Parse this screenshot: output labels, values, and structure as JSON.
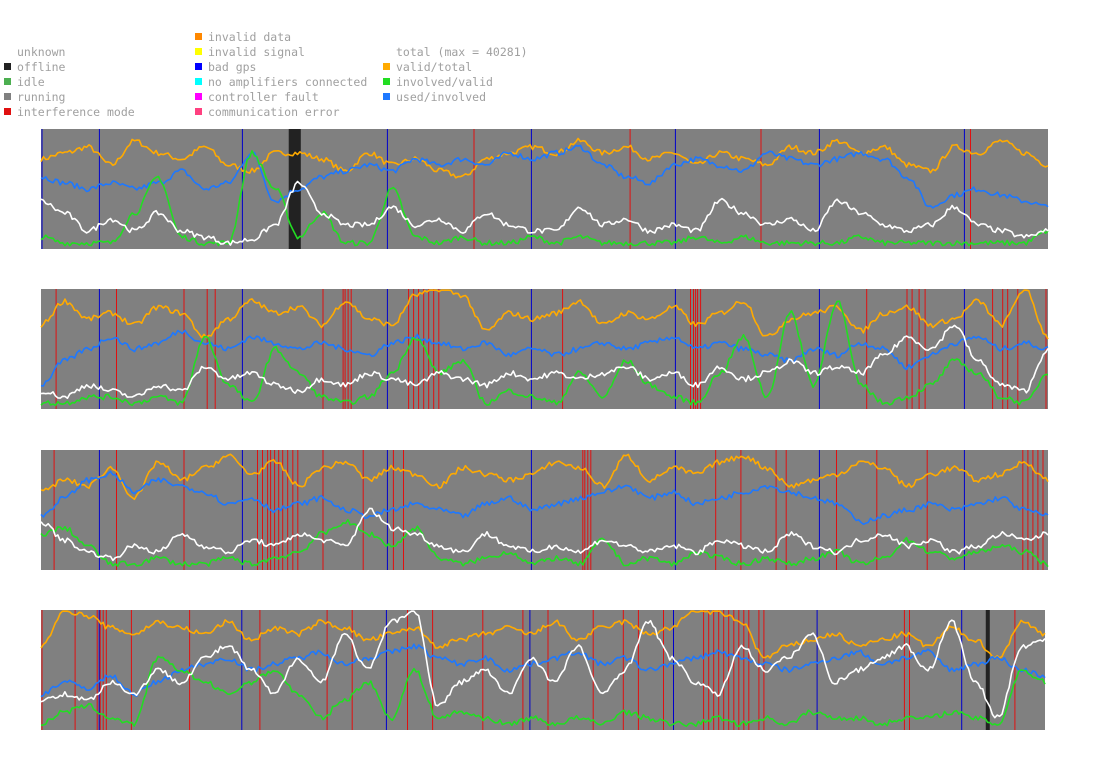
{
  "legend": {
    "status": [
      {
        "label": "unknown",
        "color": ""
      },
      {
        "label": "offline",
        "color": "#222222"
      },
      {
        "label": "idle",
        "color": "#4caf50"
      },
      {
        "label": "running",
        "color": "#808080"
      },
      {
        "label": "interference mode",
        "color": "#e01010"
      }
    ],
    "errors": [
      {
        "label": "invalid data",
        "color": "#ff8800"
      },
      {
        "label": "invalid signal",
        "color": "#ffff00"
      },
      {
        "label": "bad gps",
        "color": "#0000ff"
      },
      {
        "label": "no amplifiers connected",
        "color": "#00ffff"
      },
      {
        "label": "controller fault",
        "color": "#ff00ff"
      },
      {
        "label": "communication error",
        "color": "#ff4080"
      }
    ],
    "series": [
      {
        "label": "total (max = 40281)",
        "color": ""
      },
      {
        "label": "valid/total",
        "color": "#ffaa00"
      },
      {
        "label": "involved/valid",
        "color": "#22dd22"
      },
      {
        "label": "used/involved",
        "color": "#1e78ff"
      }
    ]
  },
  "chart_data": {
    "type": "line",
    "background_status": "running",
    "y_range": [
      0,
      1
    ],
    "series_colors": {
      "total": "#ffffff",
      "valid/total": "#ffaa00",
      "involved/valid": "#22dd22",
      "used/involved": "#1e78ff"
    },
    "panels": [
      {
        "x_range": [
          0,
          1
        ],
        "offline_spans": [
          [
            0.246,
            0.258
          ]
        ],
        "bad_gps_marks": [
          0.001,
          0.058,
          0.2,
          0.344,
          0.487,
          0.63,
          0.773,
          0.917
        ],
        "interference_marks": [
          0.43,
          0.585,
          0.715,
          0.923
        ],
        "series": [
          {
            "name": "total",
            "anchors": [
              0.4,
              0.3,
              0.15,
              0.25,
              0.15,
              0.3,
              0.15,
              0.1,
              0.05,
              0.08,
              0.2,
              0.55,
              0.3,
              0.2,
              0.2,
              0.35,
              0.2,
              0.25,
              0.15,
              0.3,
              0.2,
              0.15,
              0.15,
              0.35,
              0.2,
              0.25,
              0.15,
              0.2,
              0.15,
              0.4,
              0.3,
              0.2,
              0.25,
              0.15,
              0.4,
              0.3,
              0.2,
              0.15,
              0.2,
              0.35,
              0.2,
              0.15,
              0.1,
              0.15
            ]
          },
          {
            "name": "valid/total",
            "anchors": [
              0.75,
              0.8,
              0.85,
              0.7,
              0.9,
              0.8,
              0.75,
              0.85,
              0.7,
              0.65,
              0.8,
              0.8,
              0.75,
              0.65,
              0.8,
              0.7,
              0.75,
              0.65,
              0.6,
              0.75,
              0.8,
              0.85,
              0.8,
              0.9,
              0.8,
              0.85,
              0.75,
              0.8,
              0.7,
              0.8,
              0.75,
              0.7,
              0.85,
              0.8,
              0.9,
              0.8,
              0.85,
              0.7,
              0.65,
              0.85,
              0.8,
              0.9,
              0.8,
              0.7
            ]
          },
          {
            "name": "involved/valid",
            "anchors": [
              0.1,
              0.05,
              0.05,
              0.05,
              0.3,
              0.6,
              0.1,
              0.05,
              0.05,
              0.8,
              0.5,
              0.1,
              0.3,
              0.05,
              0.05,
              0.5,
              0.1,
              0.05,
              0.1,
              0.05,
              0.05,
              0.1,
              0.05,
              0.1,
              0.05,
              0.05,
              0.05,
              0.05,
              0.1,
              0.05,
              0.1,
              0.05,
              0.05,
              0.05,
              0.05,
              0.1,
              0.05,
              0.05,
              0.05,
              0.05,
              0.05,
              0.05,
              0.05,
              0.15
            ]
          },
          {
            "name": "used/involved",
            "anchors": [
              0.6,
              0.55,
              0.5,
              0.55,
              0.5,
              0.55,
              0.65,
              0.5,
              0.55,
              0.8,
              0.4,
              0.5,
              0.6,
              0.65,
              0.7,
              0.65,
              0.75,
              0.7,
              0.75,
              0.7,
              0.8,
              0.75,
              0.8,
              0.85,
              0.7,
              0.6,
              0.55,
              0.7,
              0.75,
              0.7,
              0.65,
              0.8,
              0.75,
              0.7,
              0.75,
              0.8,
              0.75,
              0.6,
              0.35,
              0.45,
              0.5,
              0.45,
              0.4,
              0.35
            ]
          }
        ]
      },
      {
        "x_range": [
          0,
          1
        ],
        "offline_spans": [],
        "bad_gps_marks": [
          0.058,
          0.2,
          0.344,
          0.487,
          0.63,
          0.773,
          0.917
        ],
        "interference_marks": [
          0.015,
          0.075,
          0.142,
          0.165,
          0.173,
          0.28,
          0.3,
          0.302,
          0.305,
          0.308,
          0.365,
          0.37,
          0.375,
          0.38,
          0.385,
          0.39,
          0.395,
          0.518,
          0.645,
          0.648,
          0.65,
          0.652,
          0.655,
          0.82,
          0.86,
          0.865,
          0.872,
          0.878,
          0.945,
          0.955,
          0.96,
          0.97,
          0.998
        ],
        "series": [
          {
            "name": "total",
            "anchors": [
              0.15,
              0.1,
              0.2,
              0.15,
              0.1,
              0.2,
              0.15,
              0.35,
              0.25,
              0.3,
              0.2,
              0.15,
              0.25,
              0.2,
              0.3,
              0.25,
              0.2,
              0.3,
              0.25,
              0.2,
              0.3,
              0.25,
              0.3,
              0.25,
              0.3,
              0.35,
              0.25,
              0.3,
              0.2,
              0.35,
              0.25,
              0.3,
              0.4,
              0.3,
              0.35,
              0.3,
              0.45,
              0.6,
              0.5,
              0.7,
              0.4,
              0.2,
              0.15,
              0.5
            ]
          },
          {
            "name": "valid/total",
            "anchors": [
              0.7,
              0.9,
              0.75,
              0.8,
              0.7,
              0.85,
              0.8,
              0.6,
              0.75,
              0.9,
              0.8,
              0.85,
              0.7,
              0.9,
              0.75,
              0.7,
              0.95,
              1.0,
              0.95,
              0.65,
              0.8,
              0.75,
              0.8,
              0.9,
              0.7,
              0.8,
              0.75,
              0.85,
              0.7,
              0.8,
              0.9,
              0.6,
              0.75,
              0.8,
              0.85,
              0.65,
              0.8,
              0.85,
              0.7,
              0.75,
              0.9,
              0.7,
              1.0,
              0.6
            ]
          },
          {
            "name": "involved/valid",
            "anchors": [
              0.05,
              0.05,
              0.1,
              0.1,
              0.05,
              0.1,
              0.05,
              0.6,
              0.2,
              0.05,
              0.5,
              0.3,
              0.1,
              0.05,
              0.1,
              0.3,
              0.6,
              0.3,
              0.4,
              0.05,
              0.15,
              0.1,
              0.05,
              0.3,
              0.1,
              0.4,
              0.2,
              0.1,
              0.05,
              0.3,
              0.6,
              0.1,
              0.8,
              0.2,
              0.9,
              0.2,
              0.05,
              0.1,
              0.2,
              0.4,
              0.3,
              0.1,
              0.05,
              0.3
            ]
          },
          {
            "name": "used/involved",
            "anchors": [
              0.2,
              0.4,
              0.5,
              0.6,
              0.5,
              0.55,
              0.65,
              0.55,
              0.5,
              0.6,
              0.55,
              0.5,
              0.55,
              0.5,
              0.45,
              0.55,
              0.6,
              0.55,
              0.5,
              0.55,
              0.45,
              0.5,
              0.45,
              0.5,
              0.55,
              0.5,
              0.55,
              0.6,
              0.5,
              0.55,
              0.5,
              0.45,
              0.4,
              0.5,
              0.45,
              0.55,
              0.5,
              0.35,
              0.45,
              0.55,
              0.6,
              0.5,
              0.55,
              0.5
            ]
          }
        ]
      },
      {
        "x_range": [
          0,
          1
        ],
        "offline_spans": [],
        "bad_gps_marks": [
          0.058,
          0.2,
          0.344,
          0.487,
          0.63,
          0.773,
          0.917
        ],
        "interference_marks": [
          0.013,
          0.075,
          0.142,
          0.215,
          0.22,
          0.225,
          0.228,
          0.232,
          0.236,
          0.24,
          0.245,
          0.25,
          0.255,
          0.28,
          0.32,
          0.35,
          0.36,
          0.538,
          0.54,
          0.543,
          0.546,
          0.67,
          0.695,
          0.73,
          0.74,
          0.79,
          0.83,
          0.88,
          0.975,
          0.98,
          0.985,
          0.99,
          0.995
        ],
        "series": [
          {
            "name": "total",
            "anchors": [
              0.4,
              0.25,
              0.15,
              0.1,
              0.2,
              0.15,
              0.3,
              0.2,
              0.15,
              0.25,
              0.2,
              0.3,
              0.25,
              0.2,
              0.5,
              0.35,
              0.3,
              0.2,
              0.15,
              0.3,
              0.2,
              0.15,
              0.2,
              0.15,
              0.25,
              0.2,
              0.15,
              0.2,
              0.15,
              0.25,
              0.2,
              0.15,
              0.3,
              0.2,
              0.15,
              0.25,
              0.3,
              0.2,
              0.25,
              0.15,
              0.2,
              0.3,
              0.25,
              0.3
            ]
          },
          {
            "name": "valid/total",
            "anchors": [
              0.65,
              0.75,
              0.7,
              0.85,
              0.6,
              0.9,
              0.75,
              0.85,
              0.95,
              0.8,
              0.9,
              0.7,
              0.85,
              0.9,
              0.75,
              0.85,
              0.8,
              0.7,
              0.85,
              0.8,
              0.75,
              0.8,
              0.9,
              0.85,
              0.7,
              0.95,
              0.75,
              0.85,
              0.8,
              0.9,
              0.95,
              0.85,
              0.7,
              0.75,
              0.8,
              0.9,
              0.85,
              0.7,
              0.8,
              0.85,
              0.75,
              0.8,
              0.9,
              0.75
            ]
          },
          {
            "name": "involved/valid",
            "anchors": [
              0.3,
              0.35,
              0.2,
              0.05,
              0.05,
              0.1,
              0.05,
              0.05,
              0.1,
              0.05,
              0.1,
              0.15,
              0.3,
              0.4,
              0.3,
              0.2,
              0.35,
              0.1,
              0.05,
              0.1,
              0.15,
              0.05,
              0.1,
              0.05,
              0.25,
              0.05,
              0.1,
              0.05,
              0.15,
              0.1,
              0.05,
              0.1,
              0.05,
              0.1,
              0.15,
              0.05,
              0.1,
              0.25,
              0.15,
              0.1,
              0.15,
              0.2,
              0.15,
              0.05
            ]
          },
          {
            "name": "used/involved",
            "anchors": [
              0.45,
              0.6,
              0.75,
              0.8,
              0.65,
              0.75,
              0.7,
              0.65,
              0.55,
              0.6,
              0.5,
              0.55,
              0.6,
              0.5,
              0.45,
              0.5,
              0.55,
              0.5,
              0.45,
              0.55,
              0.6,
              0.5,
              0.55,
              0.6,
              0.65,
              0.7,
              0.6,
              0.65,
              0.55,
              0.6,
              0.65,
              0.7,
              0.65,
              0.6,
              0.55,
              0.4,
              0.45,
              0.5,
              0.55,
              0.5,
              0.55,
              0.6,
              0.5,
              0.45
            ]
          }
        ]
      },
      {
        "x_range": [
          0,
          1
        ],
        "offline_spans": [
          [
            0.941,
            0.945
          ]
        ],
        "bad_gps_marks": [
          0.058,
          0.2,
          0.344,
          0.487,
          0.63,
          0.773,
          0.917
        ],
        "interference_marks": [
          0.001,
          0.034,
          0.056,
          0.059,
          0.062,
          0.065,
          0.09,
          0.148,
          0.218,
          0.285,
          0.31,
          0.365,
          0.39,
          0.44,
          0.48,
          0.505,
          0.55,
          0.58,
          0.595,
          0.62,
          0.66,
          0.665,
          0.67,
          0.675,
          0.68,
          0.685,
          0.69,
          0.695,
          0.7,
          0.705,
          0.715,
          0.72,
          0.86,
          0.865,
          0.97
        ],
        "series": [
          {
            "name": "total",
            "anchors": [
              0.25,
              0.3,
              0.25,
              0.4,
              0.3,
              0.5,
              0.4,
              0.6,
              0.7,
              0.5,
              0.3,
              0.6,
              0.4,
              0.8,
              0.5,
              0.9,
              1.0,
              0.2,
              0.4,
              0.5,
              0.3,
              0.6,
              0.4,
              0.7,
              0.3,
              0.5,
              0.9,
              0.6,
              0.4,
              0.3,
              0.7,
              0.5,
              0.6,
              0.8,
              0.4,
              0.5,
              0.6,
              0.7,
              0.5,
              0.9,
              0.4,
              0.1,
              0.7,
              0.75
            ]
          },
          {
            "name": "valid/total",
            "anchors": [
              0.7,
              1.0,
              0.95,
              0.85,
              0.8,
              0.9,
              0.85,
              0.8,
              0.9,
              0.75,
              0.85,
              0.8,
              0.9,
              0.85,
              0.75,
              0.8,
              0.85,
              0.7,
              0.75,
              0.8,
              0.85,
              0.8,
              0.9,
              0.75,
              0.85,
              0.9,
              0.8,
              0.85,
              1.0,
              0.98,
              0.9,
              0.6,
              0.7,
              0.75,
              0.8,
              0.7,
              0.75,
              0.8,
              0.7,
              0.85,
              0.75,
              0.6,
              0.9,
              0.8
            ]
          },
          {
            "name": "involved/valid",
            "anchors": [
              0.05,
              0.15,
              0.2,
              0.1,
              0.05,
              0.6,
              0.5,
              0.4,
              0.3,
              0.4,
              0.5,
              0.3,
              0.1,
              0.25,
              0.4,
              0.1,
              0.5,
              0.1,
              0.15,
              0.1,
              0.05,
              0.1,
              0.05,
              0.1,
              0.05,
              0.15,
              0.1,
              0.05,
              0.05,
              0.1,
              0.05,
              0.1,
              0.05,
              0.15,
              0.1,
              0.1,
              0.05,
              0.1,
              0.1,
              0.15,
              0.1,
              0.05,
              0.5,
              0.4
            ]
          },
          {
            "name": "used/involved",
            "anchors": [
              0.3,
              0.4,
              0.35,
              0.45,
              0.3,
              0.4,
              0.5,
              0.55,
              0.6,
              0.5,
              0.55,
              0.6,
              0.65,
              0.55,
              0.6,
              0.65,
              0.7,
              0.6,
              0.55,
              0.6,
              0.5,
              0.55,
              0.6,
              0.65,
              0.55,
              0.6,
              0.5,
              0.55,
              0.6,
              0.65,
              0.6,
              0.55,
              0.5,
              0.55,
              0.6,
              0.65,
              0.55,
              0.6,
              0.65,
              0.5,
              0.55,
              0.6,
              0.5,
              0.45
            ]
          }
        ]
      }
    ]
  }
}
